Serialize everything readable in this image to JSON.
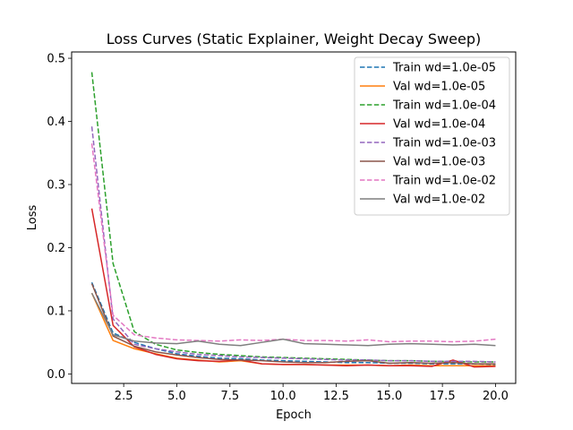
{
  "chart_data": {
    "type": "line",
    "title": "Loss Curves (Static Explainer, Weight Decay Sweep)",
    "xlabel": "Epoch",
    "ylabel": "Loss",
    "xlim": [
      0.05,
      20.95
    ],
    "ylim": [
      -0.015,
      0.51
    ],
    "xticks": [
      2.5,
      5.0,
      7.5,
      10.0,
      12.5,
      15.0,
      17.5,
      20.0
    ],
    "xtick_labels": [
      "2.5",
      "5.0",
      "7.5",
      "10.0",
      "12.5",
      "15.0",
      "17.5",
      "20.0"
    ],
    "yticks": [
      0.0,
      0.1,
      0.2,
      0.3,
      0.4,
      0.5
    ],
    "ytick_labels": [
      "0.0",
      "0.1",
      "0.2",
      "0.3",
      "0.4",
      "0.5"
    ],
    "grid": false,
    "legend_position": "top-right",
    "x": [
      1,
      2,
      3,
      4,
      5,
      6,
      7,
      8,
      9,
      10,
      11,
      12,
      13,
      14,
      15,
      16,
      17,
      18,
      19,
      20
    ],
    "series": [
      {
        "name": "Train wd=1.0e-05",
        "color": "#1f77b4",
        "dash": true,
        "values": [
          0.145,
          0.065,
          0.05,
          0.04,
          0.032,
          0.028,
          0.025,
          0.024,
          0.022,
          0.021,
          0.02,
          0.019,
          0.018,
          0.018,
          0.017,
          0.017,
          0.016,
          0.016,
          0.016,
          0.015
        ]
      },
      {
        "name": "Val wd=1.0e-05",
        "color": "#ff7f0e",
        "dash": false,
        "values": [
          0.128,
          0.053,
          0.04,
          0.032,
          0.025,
          0.022,
          0.019,
          0.021,
          0.016,
          0.015,
          0.015,
          0.014,
          0.014,
          0.014,
          0.013,
          0.014,
          0.013,
          0.013,
          0.013,
          0.013
        ]
      },
      {
        "name": "Train wd=1.0e-04",
        "color": "#2ca02c",
        "dash": true,
        "values": [
          0.478,
          0.175,
          0.067,
          0.047,
          0.038,
          0.034,
          0.031,
          0.029,
          0.027,
          0.026,
          0.025,
          0.024,
          0.023,
          0.022,
          0.021,
          0.021,
          0.02,
          0.02,
          0.019,
          0.019
        ]
      },
      {
        "name": "Val wd=1.0e-04",
        "color": "#d62728",
        "dash": false,
        "values": [
          0.262,
          0.077,
          0.043,
          0.031,
          0.024,
          0.021,
          0.02,
          0.022,
          0.016,
          0.015,
          0.015,
          0.014,
          0.013,
          0.014,
          0.013,
          0.013,
          0.012,
          0.022,
          0.011,
          0.012
        ]
      },
      {
        "name": "Train wd=1.0e-03",
        "color": "#9467bd",
        "dash": true,
        "values": [
          0.392,
          0.087,
          0.047,
          0.04,
          0.035,
          0.031,
          0.029,
          0.027,
          0.026,
          0.025,
          0.024,
          0.023,
          0.022,
          0.022,
          0.021,
          0.021,
          0.02,
          0.02,
          0.02,
          0.019
        ]
      },
      {
        "name": "Val wd=1.0e-03",
        "color": "#8c564b",
        "dash": false,
        "values": [
          0.143,
          0.06,
          0.044,
          0.035,
          0.03,
          0.026,
          0.023,
          0.022,
          0.021,
          0.019,
          0.018,
          0.018,
          0.02,
          0.021,
          0.017,
          0.018,
          0.017,
          0.018,
          0.016,
          0.016
        ]
      },
      {
        "name": "Train wd=1.0e-02",
        "color": "#e377c2",
        "dash": true,
        "values": [
          0.365,
          0.093,
          0.062,
          0.057,
          0.054,
          0.053,
          0.052,
          0.054,
          0.053,
          0.055,
          0.053,
          0.053,
          0.052,
          0.054,
          0.051,
          0.052,
          0.052,
          0.051,
          0.052,
          0.055
        ]
      },
      {
        "name": "Val wd=1.0e-02",
        "color": "#7f7f7f",
        "dash": false,
        "values": [
          0.128,
          0.062,
          0.052,
          0.049,
          0.048,
          0.052,
          0.047,
          0.045,
          0.05,
          0.055,
          0.048,
          0.047,
          0.046,
          0.045,
          0.047,
          0.048,
          0.047,
          0.046,
          0.047,
          0.045
        ]
      }
    ]
  }
}
